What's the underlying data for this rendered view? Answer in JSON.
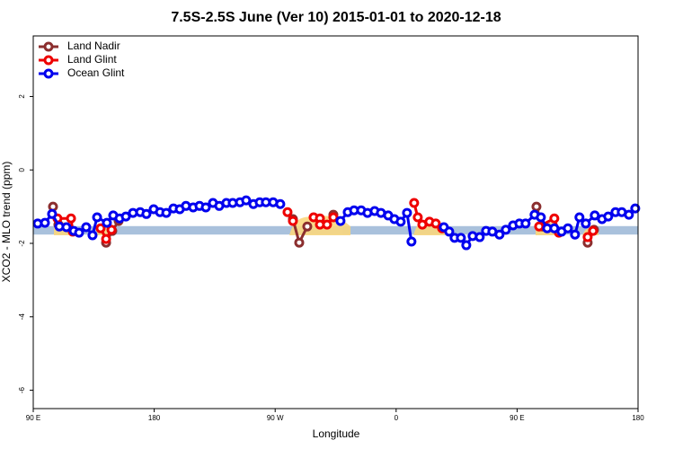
{
  "chart_data": {
    "type": "line",
    "title": "7.5S-2.5S June (Ver 10)   2015-01-01 to 2020-12-18",
    "xlabel": "Longitude",
    "ylabel": "XCO2 - MLO trend (ppm)",
    "xlim": [
      90,
      540
    ],
    "ylim": [
      -6.5,
      3.65
    ],
    "xticks": [
      {
        "value": 90,
        "label": "90 E"
      },
      180,
      {
        "value": 270,
        "label": "90 W"
      },
      {
        "value": 360,
        "label": "0"
      },
      {
        "value": 450,
        "label": "90 E"
      },
      {
        "value": 540,
        "label": "180"
      }
    ],
    "yticks": [
      2,
      0,
      -2,
      -4,
      -6
    ],
    "legend": "top-left",
    "reference_band": {
      "ylim": [
        -1.76,
        -1.53
      ],
      "color": "#a9c1dc"
    },
    "series": [
      {
        "name": "Land Nadir",
        "color": "#8b2e2e",
        "x": [
          104.7,
          108.7,
          null,
          144.2,
          148.8,
          153.5,
          null,
          283.2,
          287.9,
          293.9,
          null,
          313.3,
          null,
          464.4,
          469.0,
          null,
          502.5,
          507.2
        ],
        "values": [
          -1.0,
          -1.49,
          null,
          -1.98,
          -1.66,
          -1.39,
          null,
          -1.34,
          -1.98,
          -1.54,
          null,
          -1.22,
          null,
          -1.0,
          -1.54,
          null,
          -1.98,
          -1.63
        ]
      },
      {
        "name": "Land Glint",
        "color": "#ee0000",
        "x": [
          108.0,
          118.1,
          119.4,
          null,
          140.1,
          144.2,
          148.2,
          null,
          279.2,
          283.2,
          null,
          298.6,
          303.3,
          303.3,
          308.6,
          313.3,
          null,
          373.4,
          376.1,
          379.5,
          384.8,
          389.5,
          394.2,
          null,
          466.4,
          477.7,
          481.1,
          null,
          502.5,
          506.5
        ],
        "values": [
          -1.32,
          -1.32,
          -1.68,
          null,
          -1.59,
          -1.88,
          -1.63,
          null,
          -1.15,
          -1.39,
          null,
          -1.29,
          -1.32,
          -1.49,
          -1.49,
          -1.29,
          null,
          -0.9,
          -1.29,
          -1.49,
          -1.41,
          -1.46,
          -1.59,
          null,
          -1.54,
          -1.32,
          -1.71,
          null,
          -1.83,
          -1.66
        ]
      },
      {
        "name": "Ocean Glint",
        "color": "#0000ee",
        "x": [
          93.3,
          98.7,
          104.0,
          109.4,
          114.7,
          120.1,
          124.1,
          129.4,
          134.1,
          137.5,
          144.8,
          149.5,
          154.2,
          158.9,
          164.2,
          169.6,
          174.2,
          179.6,
          184.3,
          189.0,
          194.3,
          199.0,
          203.6,
          209.0,
          213.7,
          218.4,
          223.7,
          228.4,
          233.7,
          238.4,
          243.8,
          248.4,
          253.8,
          258.5,
          263.1,
          268.5,
          273.8,
          null,
          318.6,
          324.0,
          328.7,
          334.0,
          338.7,
          344.0,
          348.7,
          354.1,
          358.7,
          363.4,
          368.1,
          371.4,
          null,
          395.5,
          399.5,
          403.5,
          408.2,
          412.2,
          416.9,
          422.2,
          426.9,
          431.6,
          436.9,
          441.6,
          447.0,
          451.7,
          456.3,
          463.0,
          467.7,
          472.4,
          477.7,
          483.1,
          487.8,
          493.1,
          496.4,
          501.1,
          507.8,
          513.2,
          517.8,
          523.2,
          527.9,
          533.2,
          537.9
        ],
        "values": [
          -1.46,
          -1.44,
          -1.2,
          -1.54,
          -1.56,
          -1.66,
          -1.71,
          -1.56,
          -1.78,
          -1.29,
          -1.44,
          -1.24,
          -1.32,
          -1.27,
          -1.17,
          -1.15,
          -1.2,
          -1.07,
          -1.15,
          -1.17,
          -1.05,
          -1.07,
          -0.98,
          -1.02,
          -0.98,
          -1.02,
          -0.9,
          -0.98,
          -0.9,
          -0.9,
          -0.88,
          -0.83,
          -0.93,
          -0.88,
          -0.88,
          -0.88,
          -0.93,
          null,
          -1.39,
          -1.15,
          -1.1,
          -1.1,
          -1.17,
          -1.12,
          -1.17,
          -1.24,
          -1.34,
          -1.41,
          -1.17,
          -1.95,
          null,
          -1.56,
          -1.68,
          -1.85,
          -1.85,
          -2.05,
          -1.8,
          -1.83,
          -1.66,
          -1.68,
          -1.76,
          -1.63,
          -1.51,
          -1.46,
          -1.46,
          -1.22,
          -1.29,
          -1.59,
          -1.59,
          -1.68,
          -1.59,
          -1.76,
          -1.29,
          -1.46,
          -1.24,
          -1.34,
          -1.27,
          -1.15,
          -1.15,
          -1.22,
          -1.05
        ]
      }
    ]
  }
}
